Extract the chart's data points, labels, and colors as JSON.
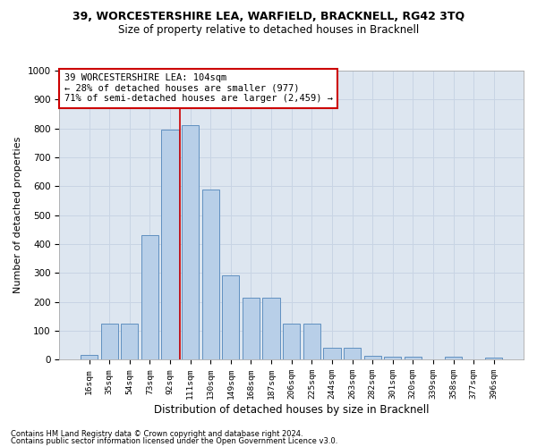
{
  "title": "39, WORCESTERSHIRE LEA, WARFIELD, BRACKNELL, RG42 3TQ",
  "subtitle": "Size of property relative to detached houses in Bracknell",
  "xlabel": "Distribution of detached houses by size in Bracknell",
  "ylabel": "Number of detached properties",
  "categories": [
    "16sqm",
    "35sqm",
    "54sqm",
    "73sqm",
    "92sqm",
    "111sqm",
    "130sqm",
    "149sqm",
    "168sqm",
    "187sqm",
    "206sqm",
    "225sqm",
    "244sqm",
    "263sqm",
    "282sqm",
    "301sqm",
    "320sqm",
    "339sqm",
    "358sqm",
    "377sqm",
    "396sqm"
  ],
  "values": [
    15,
    125,
    125,
    430,
    795,
    810,
    590,
    293,
    213,
    213,
    125,
    125,
    40,
    40,
    12,
    10,
    10,
    0,
    10,
    0,
    8
  ],
  "bar_color": "#b8cfe8",
  "bar_edge_color": "#6090c0",
  "vline_color": "#cc0000",
  "vline_x": 4.5,
  "grid_color": "#c8d4e4",
  "background_color": "#dde6f0",
  "annotation_text": "39 WORCESTERSHIRE LEA: 104sqm\n← 28% of detached houses are smaller (977)\n71% of semi-detached houses are larger (2,459) →",
  "annotation_box_color": "#ffffff",
  "annotation_box_edge_color": "#cc0000",
  "footnote1": "Contains HM Land Registry data © Crown copyright and database right 2024.",
  "footnote2": "Contains public sector information licensed under the Open Government Licence v3.0.",
  "ylim": [
    0,
    1000
  ],
  "yticks": [
    0,
    100,
    200,
    300,
    400,
    500,
    600,
    700,
    800,
    900,
    1000
  ]
}
